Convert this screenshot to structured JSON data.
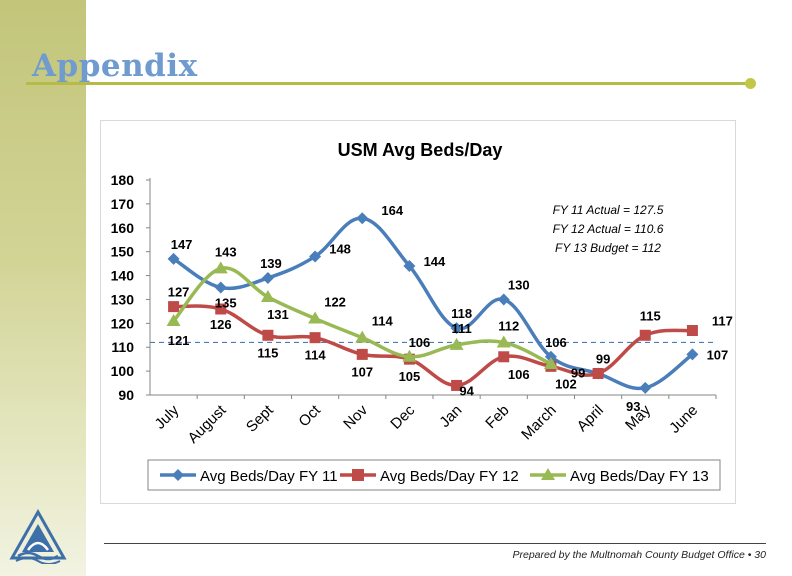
{
  "slide": {
    "title": "Appendix",
    "footer": "Prepared by the Multnomah County Budget Office • 30"
  },
  "colors": {
    "fy11": "#4a7ebb",
    "fy12": "#be4b48",
    "fy13": "#98b954",
    "budget_line": "#4a7ebb",
    "accent": "#b6bb44",
    "title_color": "#6f9bcf"
  },
  "chart_data": {
    "type": "line",
    "title": "USM Avg Beds/Day",
    "xlabel": "",
    "ylabel": "",
    "ylim": [
      90,
      180
    ],
    "yticks": [
      90,
      100,
      110,
      120,
      130,
      140,
      150,
      160,
      170,
      180
    ],
    "categories": [
      "July",
      "August",
      "Sept",
      "Oct",
      "Nov",
      "Dec",
      "Jan",
      "Feb",
      "March",
      "April",
      "May",
      "June"
    ],
    "series": [
      {
        "name": "Avg Beds/Day FY 11",
        "marker": "diamond",
        "values": [
          147,
          135,
          139,
          148,
          164,
          144,
          118,
          130,
          106,
          99,
          93,
          107
        ]
      },
      {
        "name": "Avg Beds/Day FY 12",
        "marker": "square",
        "values": [
          127,
          126,
          115,
          114,
          107,
          105,
          94,
          106,
          102,
          99,
          115,
          117
        ]
      },
      {
        "name": "Avg Beds/Day FY 13",
        "marker": "triangle",
        "values": [
          121,
          143,
          131,
          122,
          114,
          106,
          111,
          112,
          103,
          null,
          null,
          null
        ]
      }
    ],
    "reference_line": {
      "value": 112,
      "style": "dashed"
    },
    "annotations": [
      "FY 11 Actual = 127.5",
      "FY 12 Actual =  110.6",
      "FY 13 Budget = 112"
    ],
    "legend": "bottom"
  }
}
